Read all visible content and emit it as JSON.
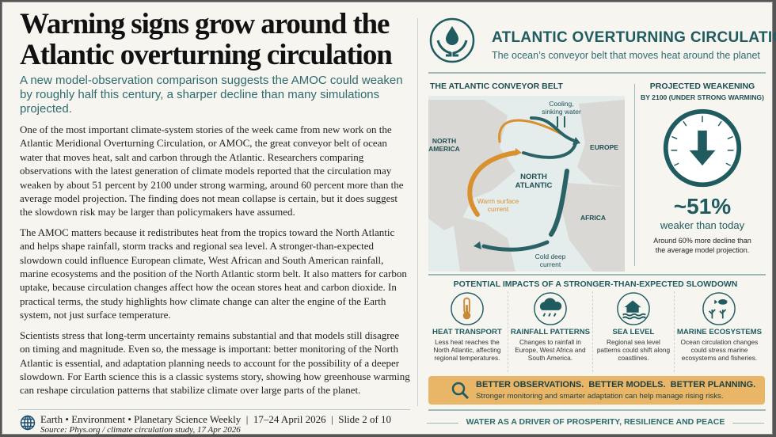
{
  "article": {
    "title": "Warning signs grow around the Atlantic overturning circulation",
    "subtitle": "A new model-observation comparison suggests the AMOC could weaken by roughly half this century, a sharper decline than many simulations projected.",
    "paragraphs": [
      "One of the most important climate-system stories of the week came from new work on the Atlantic Meridional Overturning Circulation, or AMOC, the great conveyor belt of ocean water that moves heat, salt and carbon through the Atlantic. Researchers comparing observations with the latest generation of climate models reported that the circulation may weaken by about 51 percent by 2100 under strong warming, around 60 percent more than the average model projection. The finding does not mean collapse is certain, but it does suggest the slowdown risk may be larger than policymakers have assumed.",
      "The AMOC matters because it redistributes heat from the tropics toward the North Atlantic and helps shape rainfall, storm tracks and regional sea level. A stronger-than-expected slowdown could influence European climate, West African and South American rainfall, marine ecosystems and the position of the North Atlantic storm belt. It also matters for carbon uptake, because circulation changes affect how the ocean stores heat and carbon dioxide. In practical terms, the study highlights how climate change can alter the engine of the Earth system, not just surface temperature.",
      "Scientists stress that long-term uncertainty remains substantial and that models still disagree on timing and magnitude. Even so, the message is important: better monitoring of the North Atlantic is essential, and adaptation planning needs to account for the possibility of a deeper slowdown. For Earth science this is a classic systems story, showing how greenhouse warming can reshape circulation patterns that stabilize climate over large parts of the planet."
    ]
  },
  "footer": {
    "line": "Earth • Environment • Planetary Science Weekly  |  17–24 April 2026  |  Slide 2 of 10",
    "source": "Source: Phys.org / climate circulation study, 17 Apr 2026"
  },
  "infographic": {
    "title": "ATLANTIC OVERTURNING CIRCULATION",
    "subtitle": "The ocean’s conveyor belt that moves heat around the planet",
    "map": {
      "heading": "THE ATLANTIC CONVEYOR BELT",
      "labels": {
        "cooling1": "Cooling,",
        "cooling2": "sinking water",
        "na1": "NORTH",
        "na2": "AMERICA",
        "europe": "EUROPE",
        "nat1": "NORTH",
        "nat2": "ATLANTIC",
        "warm1": "Warm surface",
        "warm2": "current",
        "africa": "AFRICA",
        "cold1": "Cold deep",
        "cold2": "current"
      }
    },
    "gauge": {
      "heading1": "PROJECTED WEAKENING",
      "heading2": "BY 2100 (UNDER STRONG WARMING)",
      "value": "~51%",
      "value_label": "weaker than today",
      "note": "Around 60% more decline than the average model projection."
    },
    "impacts_heading": "POTENTIAL IMPACTS OF A STRONGER-THAN-EXPECTED SLOWDOWN",
    "impacts": [
      {
        "name": "HEAT TRANSPORT",
        "desc": "Less heat reaches the North Atlantic, affecting regional temperatures."
      },
      {
        "name": "RAINFALL PATTERNS",
        "desc": "Changes to rainfall in Europe, West Africa and South America."
      },
      {
        "name": "SEA LEVEL",
        "desc": "Regional sea level patterns could shift along coastlines."
      },
      {
        "name": "MARINE ECOSYSTEMS",
        "desc": "Ocean circulation changes could stress marine ecosystems and fisheries."
      }
    ],
    "banner": {
      "headline": "BETTER OBSERVATIONS.  BETTER MODELS.  BETTER PLANNING.",
      "text": "Stronger monitoring and smarter adaptation can help manage rising risks."
    },
    "tagline": "WATER AS A DRIVER OF PROSPERITY, RESILIENCE AND PEACE"
  },
  "colors": {
    "teal": "#1f5b5f",
    "orange": "#d9902f",
    "banner": "#e9b667"
  }
}
